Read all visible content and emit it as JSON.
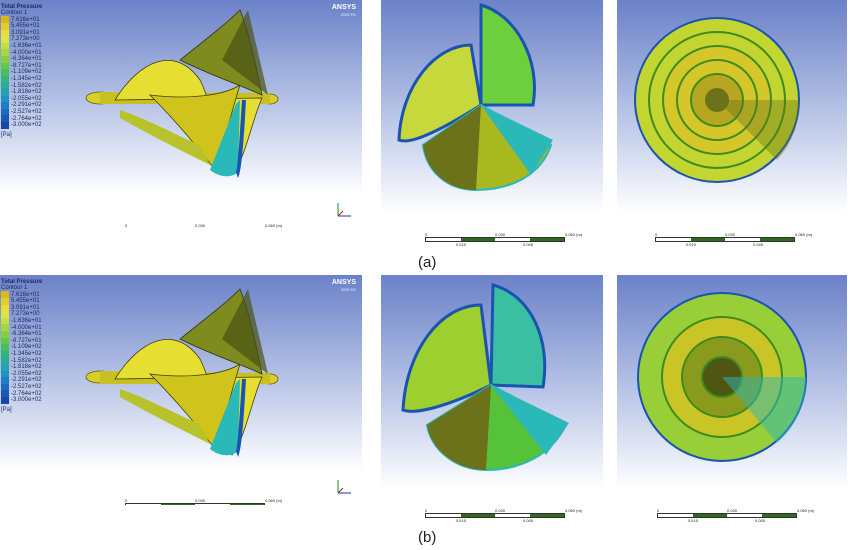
{
  "legend": {
    "title": "Total Pressure",
    "subtitle": "Contour 1",
    "values": [
      "7.616e+01",
      "5.455e+01",
      "3.091e+01",
      "7.273e+00",
      "-1.636e+01",
      "-4.000e+01",
      "-6.364e+01",
      "-8.727e+01",
      "-1.109e+02",
      "-1.345e+02",
      "-1.582e+02",
      "-1.818e+02",
      "-2.055e+02",
      "-2.291e+02",
      "-2.527e+02",
      "-2.764e+02",
      "-3.000e+02"
    ],
    "units": "[Pa]",
    "colors": [
      "#d8b91c",
      "#e3cd2a",
      "#e9dd3a",
      "#dde542",
      "#c2e142",
      "#a3d93f",
      "#84d040",
      "#63c84a",
      "#46c05e",
      "#34b67b",
      "#2aad98",
      "#25a1b2",
      "#2190c2",
      "#1e7dc4",
      "#1c6ac0",
      "#1a58b8",
      "#1747ac"
    ]
  },
  "brand": {
    "name": "ANSYS",
    "version": "2020 R1"
  },
  "scale": {
    "ticks": [
      "0",
      "0.030",
      "0.060 (m)"
    ],
    "subticks": [
      "0.015",
      "0.045"
    ]
  },
  "captions": {
    "a": "(a)",
    "b": "(b)"
  },
  "colors": {
    "bg_top": "#6c82c9",
    "dark": "#4a4d14",
    "yellow": "#d6d023",
    "green": "#49c93a",
    "cyan": "#2bb8b8",
    "blue": "#1a54b0"
  }
}
